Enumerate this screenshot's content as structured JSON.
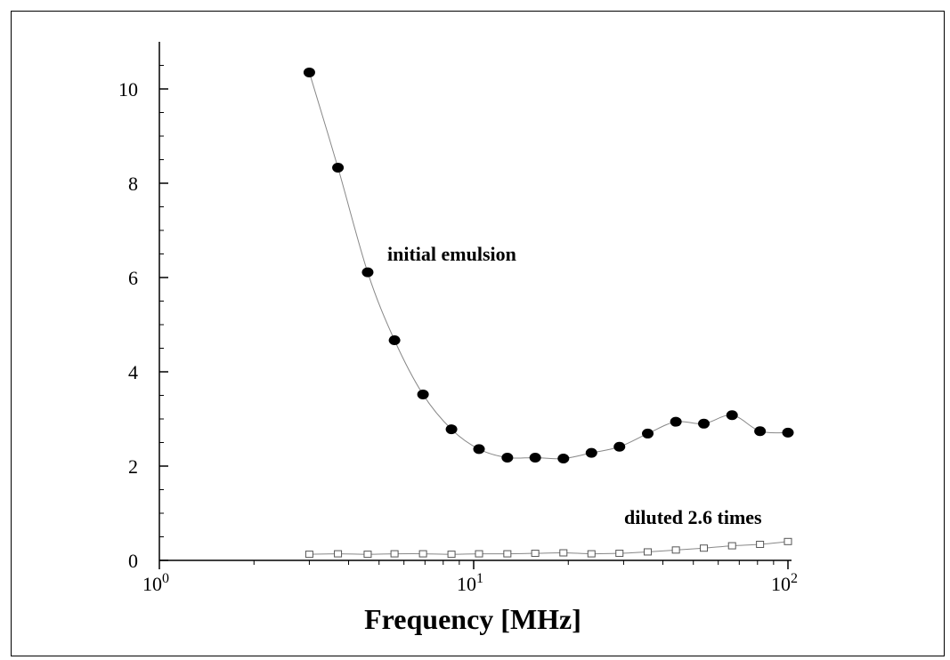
{
  "chart_data": {
    "type": "scatter",
    "title": "",
    "xlabel": "Frequency [MHz]",
    "ylabel": "",
    "x_scale": "log",
    "xlim": [
      1,
      100
    ],
    "ylim": [
      0,
      11
    ],
    "x_ticks": [
      {
        "value": 1,
        "base": "10",
        "exp": "0"
      },
      {
        "value": 10,
        "base": "10",
        "exp": "1"
      },
      {
        "value": 100,
        "base": "10",
        "exp": "2"
      }
    ],
    "y_ticks": [
      {
        "value": 0,
        "label": "0"
      },
      {
        "value": 2,
        "label": "2"
      },
      {
        "value": 4,
        "label": "4"
      },
      {
        "value": 6,
        "label": "6"
      },
      {
        "value": 8,
        "label": "8"
      },
      {
        "value": 10,
        "label": "10"
      }
    ],
    "grid": false,
    "series": [
      {
        "marker": "filled-circle",
        "color": "#000000",
        "line_color": "#888888",
        "annotation": "initial emulsion",
        "x": [
          3.0,
          3.7,
          4.6,
          5.6,
          6.9,
          8.5,
          10.4,
          12.8,
          15.7,
          19.3,
          23.7,
          29.1,
          35.8,
          44.0,
          54.0,
          66.4,
          81.5,
          100
        ],
        "y": [
          10.35,
          8.33,
          6.11,
          4.67,
          3.52,
          2.78,
          2.36,
          2.18,
          2.18,
          2.16,
          2.28,
          2.41,
          2.69,
          2.94,
          2.9,
          3.08,
          2.74,
          2.71
        ]
      },
      {
        "marker": "open-square",
        "color": "#555555",
        "line_color": "#888888",
        "annotation": "diluted 2.6 times",
        "x": [
          3.0,
          3.7,
          4.6,
          5.6,
          6.9,
          8.5,
          10.4,
          12.8,
          15.7,
          19.3,
          23.7,
          29.1,
          35.8,
          44.0,
          54.0,
          66.4,
          81.5,
          100
        ],
        "y": [
          0.13,
          0.14,
          0.13,
          0.14,
          0.14,
          0.13,
          0.14,
          0.14,
          0.15,
          0.16,
          0.14,
          0.15,
          0.18,
          0.22,
          0.26,
          0.31,
          0.34,
          0.4
        ]
      }
    ]
  }
}
